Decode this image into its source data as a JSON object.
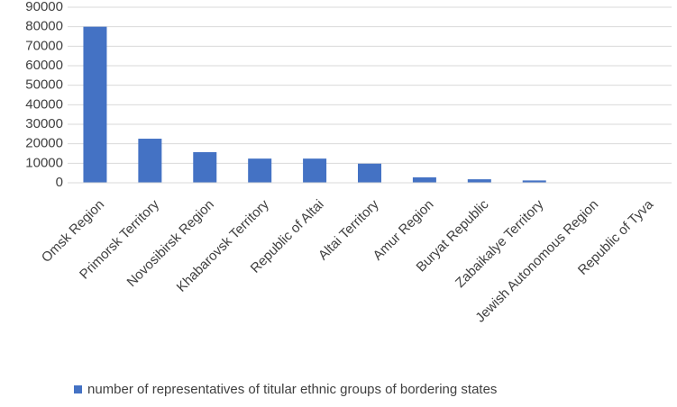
{
  "chart_data": {
    "type": "bar",
    "categories": [
      "Omsk Region",
      "Primorsk Territory",
      "Novosibirsk Region",
      "Khabarovsk Territory",
      "Republic of Altai",
      "Altai Territory",
      "Amur Region",
      "Buryat Republic",
      "Zabaikalye Territory",
      "Jewish Autonomous Region",
      "Republic of Tyva"
    ],
    "series": [
      {
        "name": "number of representatives of titular ethnic groups of bordering states",
        "color": "#4472c4",
        "values": [
          80000,
          22600,
          15700,
          12400,
          12400,
          9800,
          2800,
          1800,
          1200,
          200,
          100
        ]
      }
    ],
    "ylim": [
      0,
      90000
    ],
    "yticks": [
      0,
      10000,
      20000,
      30000,
      40000,
      50000,
      60000,
      70000,
      80000,
      90000
    ],
    "grid": true,
    "legend": "bottom"
  }
}
